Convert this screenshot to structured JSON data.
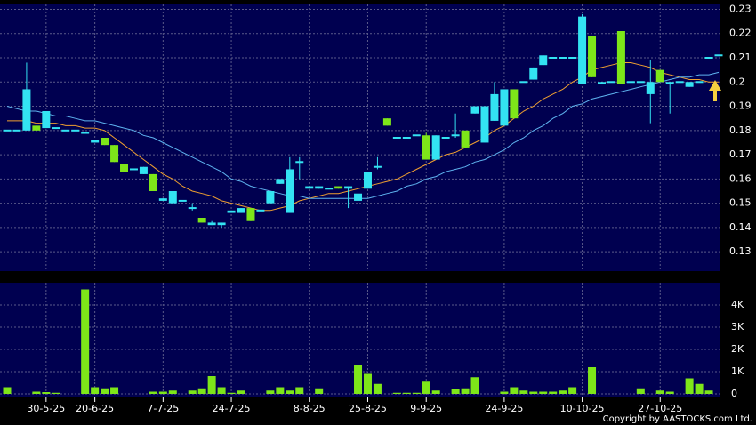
{
  "chart_data": [
    {
      "type": "candlestick",
      "up_color": "#33e3f2",
      "down_color": "#7ee619",
      "grid": true,
      "ylim": [
        0.122,
        0.232
      ],
      "yticks": [
        0.13,
        0.14,
        0.15,
        0.16,
        0.17,
        0.18,
        0.19,
        0.2,
        0.21,
        0.22,
        0.23
      ],
      "open": [
        0.18,
        0.18,
        0.18,
        0.182,
        0.181,
        0.181,
        0.18,
        0.18,
        0.179,
        0.175,
        0.177,
        0.174,
        0.166,
        0.164,
        0.162,
        0.162,
        0.151,
        0.15,
        0.151,
        0.148,
        0.144,
        0.141,
        0.141,
        0.146,
        0.146,
        0.148,
        0.147,
        0.15,
        0.158,
        0.146,
        0.167,
        0.156,
        0.156,
        0.156,
        0.157,
        0.156,
        0.151,
        0.156,
        0.165,
        0.185,
        0.177,
        0.177,
        0.178,
        0.178,
        0.168,
        0.177,
        0.178,
        0.18,
        0.187,
        0.175,
        0.184,
        0.182,
        0.197,
        0.2,
        0.201,
        0.207,
        0.21,
        0.21,
        0.21,
        0.199,
        0.219,
        0.199,
        0.2,
        0.221,
        0.2,
        0.2,
        0.195,
        0.205,
        0.199,
        0.2,
        0.198,
        0.2,
        0.21,
        0.211
      ],
      "high": [
        0.18,
        0.18,
        0.208,
        0.182,
        0.188,
        0.181,
        0.18,
        0.18,
        0.179,
        0.176,
        0.177,
        0.174,
        0.166,
        0.164,
        0.165,
        0.162,
        0.152,
        0.155,
        0.151,
        0.15,
        0.144,
        0.143,
        0.142,
        0.147,
        0.148,
        0.148,
        0.147,
        0.155,
        0.16,
        0.169,
        0.169,
        0.157,
        0.157,
        0.156,
        0.157,
        0.157,
        0.154,
        0.163,
        0.169,
        0.185,
        0.177,
        0.177,
        0.178,
        0.179,
        0.178,
        0.177,
        0.187,
        0.18,
        0.19,
        0.19,
        0.2,
        0.197,
        0.197,
        0.2,
        0.206,
        0.211,
        0.21,
        0.21,
        0.21,
        0.228,
        0.219,
        0.2,
        0.2,
        0.221,
        0.2,
        0.2,
        0.209,
        0.205,
        0.2,
        0.2,
        0.2,
        0.2,
        0.21,
        0.211
      ],
      "low": [
        0.18,
        0.18,
        0.18,
        0.18,
        0.181,
        0.181,
        0.18,
        0.18,
        0.179,
        0.175,
        0.174,
        0.167,
        0.163,
        0.164,
        0.162,
        0.155,
        0.151,
        0.15,
        0.151,
        0.147,
        0.142,
        0.141,
        0.14,
        0.146,
        0.146,
        0.143,
        0.147,
        0.15,
        0.158,
        0.146,
        0.16,
        0.156,
        0.156,
        0.156,
        0.156,
        0.148,
        0.15,
        0.156,
        0.164,
        0.182,
        0.177,
        0.177,
        0.178,
        0.168,
        0.168,
        0.177,
        0.177,
        0.173,
        0.187,
        0.175,
        0.184,
        0.182,
        0.185,
        0.2,
        0.201,
        0.207,
        0.21,
        0.21,
        0.21,
        0.199,
        0.202,
        0.199,
        0.2,
        0.199,
        0.2,
        0.2,
        0.183,
        0.2,
        0.187,
        0.2,
        0.198,
        0.2,
        0.21,
        0.211
      ],
      "close": [
        0.18,
        0.18,
        0.197,
        0.18,
        0.188,
        0.181,
        0.18,
        0.18,
        0.179,
        0.176,
        0.174,
        0.167,
        0.163,
        0.164,
        0.165,
        0.155,
        0.152,
        0.155,
        0.151,
        0.148,
        0.142,
        0.142,
        0.142,
        0.147,
        0.148,
        0.143,
        0.147,
        0.155,
        0.16,
        0.164,
        0.167,
        0.157,
        0.157,
        0.156,
        0.156,
        0.157,
        0.154,
        0.163,
        0.165,
        0.182,
        0.177,
        0.177,
        0.178,
        0.168,
        0.178,
        0.177,
        0.178,
        0.173,
        0.19,
        0.19,
        0.195,
        0.197,
        0.185,
        0.2,
        0.206,
        0.211,
        0.21,
        0.21,
        0.21,
        0.227,
        0.202,
        0.2,
        0.2,
        0.199,
        0.2,
        0.2,
        0.2,
        0.2,
        0.2,
        0.2,
        0.2,
        0.2,
        0.21,
        0.211
      ],
      "series": [
        {
          "color": "#f0a030",
          "values": [
            0.184,
            0.184,
            0.184,
            0.183,
            0.183,
            0.183,
            0.182,
            0.182,
            0.181,
            0.181,
            0.18,
            0.177,
            0.174,
            0.171,
            0.168,
            0.165,
            0.162,
            0.16,
            0.157,
            0.155,
            0.154,
            0.153,
            0.151,
            0.15,
            0.149,
            0.148,
            0.147,
            0.147,
            0.148,
            0.149,
            0.151,
            0.152,
            0.153,
            0.154,
            0.154,
            0.155,
            0.156,
            0.157,
            0.158,
            0.159,
            0.16,
            0.162,
            0.164,
            0.166,
            0.168,
            0.17,
            0.171,
            0.173,
            0.175,
            0.177,
            0.18,
            0.182,
            0.185,
            0.188,
            0.19,
            0.193,
            0.195,
            0.197,
            0.2,
            0.202,
            0.205,
            0.206,
            0.207,
            0.208,
            0.208,
            0.207,
            0.206,
            0.204,
            0.203,
            0.202,
            0.201,
            0.201,
            0.2,
            0.2
          ]
        },
        {
          "color": "#5fb4f0",
          "values": [
            0.19,
            0.189,
            0.188,
            0.188,
            0.187,
            0.186,
            0.186,
            0.185,
            0.184,
            0.184,
            0.183,
            0.182,
            0.181,
            0.18,
            0.178,
            0.177,
            0.175,
            0.173,
            0.171,
            0.169,
            0.167,
            0.165,
            0.163,
            0.16,
            0.159,
            0.157,
            0.156,
            0.155,
            0.154,
            0.153,
            0.153,
            0.152,
            0.152,
            0.152,
            0.152,
            0.152,
            0.152,
            0.152,
            0.153,
            0.154,
            0.155,
            0.157,
            0.158,
            0.16,
            0.161,
            0.163,
            0.164,
            0.165,
            0.167,
            0.168,
            0.17,
            0.172,
            0.175,
            0.177,
            0.18,
            0.182,
            0.185,
            0.187,
            0.19,
            0.191,
            0.193,
            0.194,
            0.195,
            0.196,
            0.197,
            0.198,
            0.199,
            0.2,
            0.201,
            0.202,
            0.202,
            0.203,
            0.203,
            0.204
          ]
        }
      ]
    },
    {
      "type": "bar",
      "color": "#7ee619",
      "grid": true,
      "categories": [
        null,
        null,
        null,
        null,
        "30-5-25",
        null,
        null,
        null,
        null,
        "20-6-25",
        null,
        null,
        null,
        null,
        null,
        null,
        "7-7-25",
        null,
        null,
        null,
        null,
        null,
        null,
        "24-7-25",
        null,
        null,
        null,
        null,
        null,
        null,
        null,
        "8-8-25",
        null,
        null,
        null,
        null,
        null,
        "25-8-25",
        null,
        null,
        null,
        null,
        null,
        "9-9-25",
        null,
        null,
        null,
        null,
        null,
        null,
        null,
        "24-9-25",
        null,
        null,
        null,
        null,
        null,
        null,
        null,
        "10-10-25",
        null,
        null,
        null,
        null,
        null,
        null,
        null,
        "27-10-25",
        null,
        null,
        null,
        null,
        null,
        null
      ],
      "values": [
        300,
        0,
        0,
        100,
        80,
        50,
        0,
        0,
        4700,
        300,
        250,
        300,
        0,
        0,
        0,
        100,
        100,
        150,
        0,
        150,
        250,
        800,
        300,
        50,
        150,
        0,
        0,
        150,
        300,
        150,
        300,
        0,
        250,
        0,
        0,
        0,
        1300,
        900,
        450,
        0,
        50,
        50,
        50,
        550,
        150,
        0,
        200,
        250,
        750,
        0,
        0,
        100,
        300,
        150,
        100,
        100,
        100,
        150,
        300,
        0,
        1200,
        0,
        0,
        0,
        0,
        250,
        0,
        150,
        100,
        0,
        700,
        450,
        150,
        0
      ],
      "ylim": [
        0,
        5000
      ],
      "yticks": [
        0,
        {
          "value": 1000,
          "label": "1K"
        },
        {
          "value": 2000,
          "label": "2K"
        },
        {
          "value": 3000,
          "label": "3K"
        },
        {
          "value": 4000,
          "label": "4K"
        }
      ],
      "annotation": "Copyright by AASTOCKS.com Ltd."
    }
  ]
}
